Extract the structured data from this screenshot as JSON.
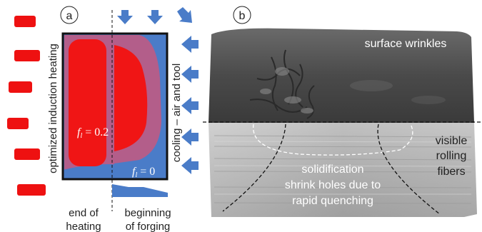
{
  "panel_a": {
    "label": "a",
    "side_text_left": "optimized induction heating",
    "side_text_right": "cooling – air and tool",
    "fraction_core": {
      "symbol": "f",
      "subscript": "l",
      "eq": " = 0.2"
    },
    "fraction_edge": {
      "symbol": "f",
      "subscript": "l",
      "eq": " = 0"
    },
    "caption_left": [
      "end of",
      "heating"
    ],
    "caption_right": [
      "beginning",
      "of forging"
    ],
    "colors": {
      "coil": "#ee1111",
      "billet": "#4a7cc8",
      "core": "#f01515",
      "mushy": "#b35e8a",
      "arrow": "#4a7cc8"
    }
  },
  "panel_b": {
    "label": "b",
    "annotation_top": "surface wrinkles",
    "annotation_right": [
      "visible",
      "rolling",
      "fibers"
    ],
    "annotation_center": [
      "solidification",
      "shrink holes due to",
      "rapid quenching"
    ]
  }
}
